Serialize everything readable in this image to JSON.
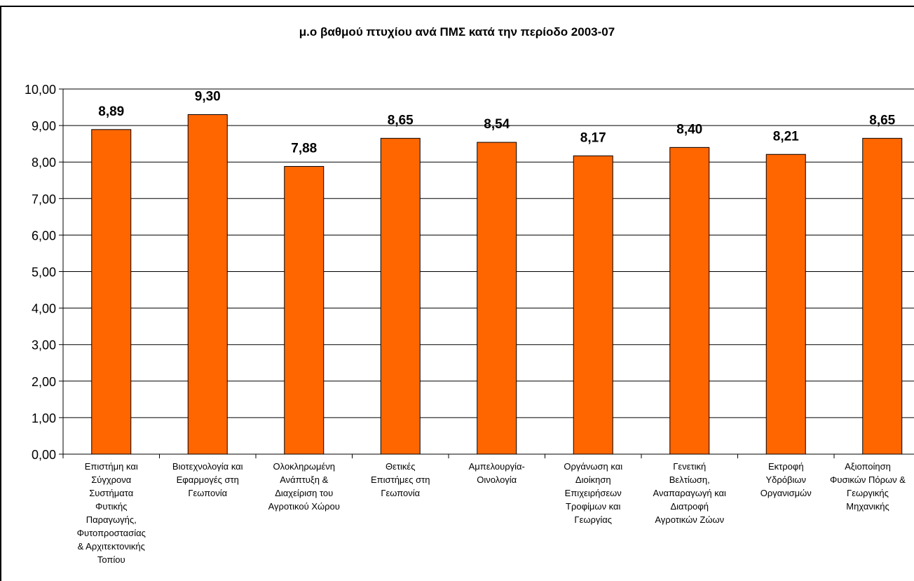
{
  "chart_data": {
    "type": "bar",
    "title": "μ.ο βαθμού πτυχίου ανά ΠΜΣ κατά την περίοδο 2003-07",
    "xlabel": "",
    "ylabel": "",
    "ylim": [
      0,
      10
    ],
    "yticks": [
      "0,00",
      "1,00",
      "2,00",
      "3,00",
      "4,00",
      "5,00",
      "6,00",
      "7,00",
      "8,00",
      "9,00",
      "10,00"
    ],
    "grid": true,
    "legend": "none",
    "bar_color": "#FF6600",
    "categories": [
      "Επιστήμη και\nΣύγχρονα\nΣυστήματα\nΦυτικής\nΠαραγωγής,\nΦυτοπροστασίας\n& Αρχιτεκτονικής\nΤοπίου",
      "Βιοτεχνολογία και\nΕφαρμογές στη\nΓεωπονία",
      "Ολοκληρωμένη\nΑνάπτυξη &\nΔιαχείριση του\nΑγροτικού Χώρου",
      "Θετικές\nΕπιστήμες στη\nΓεωπονία",
      "Αμπελουργία-\nΟινολογία",
      "Οργάνωση και\nΔιοίκηση\nΕπιχειρήσεων\nΤροφίμων και\nΓεωργίας",
      "Γενετική\nΒελτίωση,\nΑναπαραγωγή και\nΔιατροφή\nΑγροτικών Ζώων",
      "Εκτροφή\nΥδρόβιων\nΟργανισμών",
      "Αξιοποίηση\nΦυσικών Πόρων &\nΓεωργικής\nΜηχανικής"
    ],
    "values": [
      8.89,
      9.3,
      7.88,
      8.65,
      8.54,
      8.17,
      8.4,
      8.21,
      8.65
    ],
    "value_labels": [
      "8,89",
      "9,30",
      "7,88",
      "8,65",
      "8,54",
      "8,17",
      "8,40",
      "8,21",
      "8,65"
    ]
  }
}
